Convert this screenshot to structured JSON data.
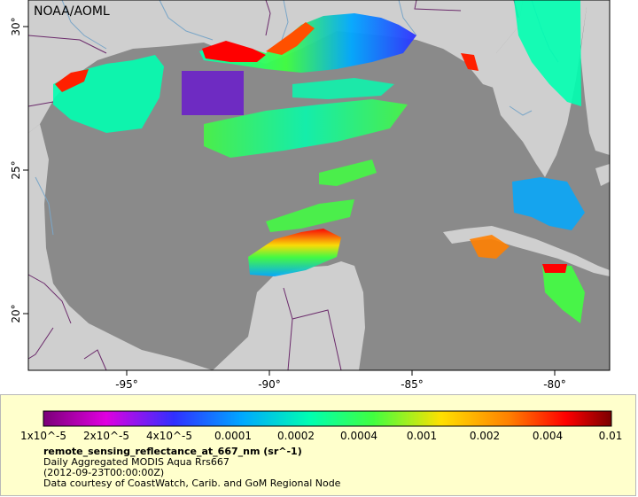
{
  "map": {
    "credit": "NOAA/AOML",
    "lon_ticks": [
      "-95°",
      "-90°",
      "-85°",
      "-80°"
    ],
    "lat_ticks": [
      "30°",
      "25°",
      "20°"
    ],
    "colors": {
      "ocean": "#8a8a8a",
      "land": "#cfcfcf",
      "border": "#6b2a6b",
      "river": "#7aa6c8"
    }
  },
  "legend": {
    "colorbar_labels": [
      "1x10^-5",
      "2x10^-5",
      "4x10^-5",
      "0.0001",
      "0.0002",
      "0.0004",
      "0.001",
      "0.002",
      "0.004",
      "0.01"
    ],
    "colorbar_colors": [
      "#7a0078",
      "#e000e0",
      "#3030ff",
      "#00a8ff",
      "#00ffb0",
      "#40ff40",
      "#ffe000",
      "#ff8000",
      "#ff0000",
      "#7a0000"
    ],
    "variable": "remote_sensing_reflectance_at_667_nm (sr^-1)",
    "product": "Daily Aggregated MODIS Aqua Rrs667",
    "time": "(2012-09-23T00:00:00Z)",
    "source": "Data courtesy of CoastWatch, Carib. and GoM Regional Node"
  }
}
